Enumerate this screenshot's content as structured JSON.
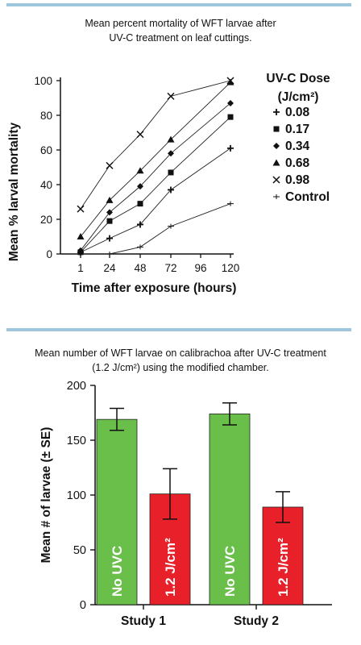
{
  "chart_data": [
    {
      "type": "line",
      "title_lines": [
        "Mean percent mortality of WFT larvae after",
        "UV-C treatment on leaf cuttings."
      ],
      "xlabel": "Time after exposure (hours)",
      "ylabel": "Mean % larval mortality",
      "x_tick_labels": [
        "1",
        "24",
        "48",
        "72",
        "96",
        "120"
      ],
      "y_ticks": [
        "0",
        "20",
        "40",
        "60",
        "80",
        "100"
      ],
      "ylim": [
        0,
        100
      ],
      "legend_title_lines": [
        "UV-C Dose",
        "(J/cm²)"
      ],
      "legend_position": "right",
      "series": [
        {
          "name": "0.08",
          "marker": "plus",
          "x": [
            1,
            24,
            48,
            72,
            120
          ],
          "y": [
            1,
            9,
            17,
            37,
            61
          ]
        },
        {
          "name": "0.17",
          "marker": "square",
          "x": [
            1,
            24,
            48,
            72,
            120
          ],
          "y": [
            1,
            19,
            29,
            47,
            79
          ]
        },
        {
          "name": "0.34",
          "marker": "diamond",
          "x": [
            1,
            24,
            48,
            72,
            120
          ],
          "y": [
            2,
            24,
            39,
            58,
            87
          ]
        },
        {
          "name": "0.68",
          "marker": "triangle",
          "x": [
            1,
            24,
            48,
            72,
            120
          ],
          "y": [
            10,
            31,
            48,
            66,
            99
          ]
        },
        {
          "name": "0.98",
          "marker": "x",
          "x": [
            1,
            24,
            48,
            72,
            120
          ],
          "y": [
            26,
            51,
            69,
            91,
            100
          ]
        },
        {
          "name": "Control",
          "marker": "tick",
          "x": [
            24,
            48,
            72,
            120
          ],
          "y": [
            0,
            4,
            16,
            29
          ]
        }
      ]
    },
    {
      "type": "bar",
      "title_lines": [
        "Mean number of WFT larvae on calibrachoa after UV-C treatment",
        "(1.2 J/cm²) using the modified chamber."
      ],
      "ylabel": "Mean # of larvae (± SE)",
      "categories": [
        "Study 1",
        "Study 2"
      ],
      "y_ticks": [
        "0",
        "50",
        "100",
        "150",
        "200"
      ],
      "ylim": [
        0,
        200
      ],
      "series": [
        {
          "name": "No UVC",
          "color": "#6abf4b",
          "values": [
            169,
            174
          ],
          "err": [
            10,
            10
          ]
        },
        {
          "name": "1.2 J/cm²",
          "color": "#e8202a",
          "values": [
            101,
            89
          ],
          "err": [
            23,
            14
          ]
        }
      ]
    }
  ]
}
